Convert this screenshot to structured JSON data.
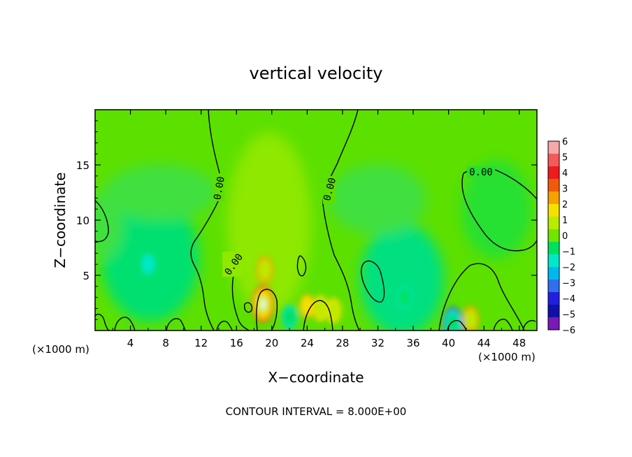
{
  "chart_data": {
    "type": "heatmap",
    "title": "vertical velocity",
    "xlabel": "X−coordinate",
    "ylabel": "Z−coordinate",
    "x_unit": "(×1000 m)",
    "x_unit_right": "(×1000 m)",
    "xlim": [
      0,
      50
    ],
    "ylim": [
      0,
      20
    ],
    "x_ticks": [
      4,
      8,
      12,
      16,
      20,
      24,
      28,
      32,
      36,
      40,
      44,
      48
    ],
    "y_ticks": [
      5,
      10,
      15
    ],
    "colorbar": {
      "ticks": [
        6,
        5,
        4,
        3,
        2,
        1,
        0,
        -1,
        -2,
        -3,
        -4,
        -5,
        -6
      ],
      "colors": [
        "#f7a8a8",
        "#f45a5a",
        "#ee1c1c",
        "#f25a0a",
        "#f8a000",
        "#f6e000",
        "#b8ec00",
        "#6ee600",
        "#00e060",
        "#00e8c8",
        "#00b8f0",
        "#3070f0",
        "#2020e0",
        "#1010a8",
        "#7a18b8"
      ]
    },
    "contour_label": "0.00",
    "footer": "CONTOUR INTERVAL = 8.000E+00",
    "features": [
      {
        "x": 19.0,
        "z": 2.4,
        "w": 6.0
      },
      {
        "x": 19.2,
        "z": 5.5,
        "w": 3.2
      },
      {
        "x": 25.5,
        "z": 2.0,
        "w": 3.0
      },
      {
        "x": 27.0,
        "z": 1.8,
        "w": 2.8
      },
      {
        "x": 24.0,
        "z": 2.2,
        "w": 2.4
      },
      {
        "x": 42.5,
        "z": 1.0,
        "w": 3.2
      },
      {
        "x": 40.5,
        "z": 0.6,
        "w": -5.0
      },
      {
        "x": 22.0,
        "z": 1.2,
        "w": -2.5
      },
      {
        "x": 35.0,
        "z": 3.0,
        "w": -1.8
      },
      {
        "x": 6.0,
        "z": 6.0,
        "w": -1.3
      }
    ]
  }
}
